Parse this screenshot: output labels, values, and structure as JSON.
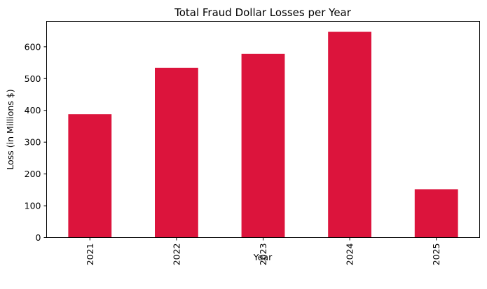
{
  "chart_data": {
    "type": "bar",
    "title": "Total Fraud Dollar Losses per Year",
    "xlabel": "Year",
    "ylabel": "Loss (in Millions $)",
    "categories": [
      "2021",
      "2022",
      "2023",
      "2024",
      "2025"
    ],
    "values": [
      388,
      534,
      578,
      647,
      152
    ],
    "ylim": [
      0,
      680
    ],
    "yticks": [
      0,
      100,
      200,
      300,
      400,
      500,
      600
    ],
    "bar_color": "#dc143c",
    "grid": false,
    "legend": "none"
  }
}
